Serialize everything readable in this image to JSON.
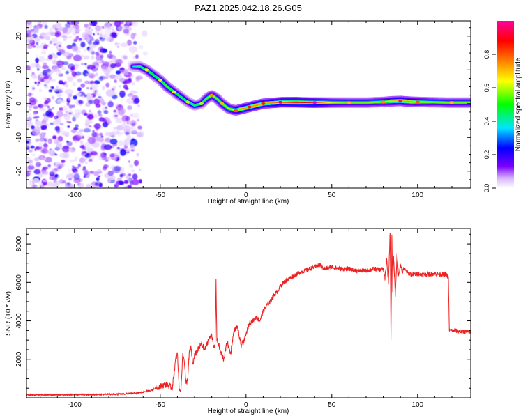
{
  "title": "PAZ1.2025.042.18.26.G05",
  "chart_data": [
    {
      "type": "heatmap",
      "xlabel": "Height of straight line (km)",
      "ylabel": "Frequency (Hz)",
      "xlim": [
        -128,
        131
      ],
      "ylim": [
        -25,
        24.5
      ],
      "x_ticks": [
        -100,
        -50,
        0,
        50,
        100
      ],
      "x_tick_labels": [
        "-100",
        "-50",
        "0",
        "50",
        "100"
      ],
      "y_ticks": [
        -20,
        -10,
        0,
        10,
        20
      ],
      "y_tick_labels": [
        "-20",
        "-10",
        "0",
        "10",
        "20"
      ],
      "noise_region_x": [
        -128,
        -58
      ],
      "ridge": {
        "x": [
          -66,
          -62,
          -58,
          -54,
          -50,
          -46,
          -42,
          -38,
          -34,
          -30,
          -26,
          -23,
          -20,
          -17,
          -14,
          -10,
          -6,
          -2,
          2,
          6,
          10,
          15,
          20,
          30,
          40,
          50,
          60,
          70,
          80,
          85,
          90,
          95,
          100,
          110,
          120,
          131
        ],
        "y": [
          11,
          11,
          10,
          8.5,
          7,
          5,
          3.5,
          2,
          0.5,
          -0.5,
          0,
          1.5,
          2.5,
          1.5,
          0,
          -1.5,
          -2,
          -1.5,
          -1,
          -0.5,
          0,
          0.2,
          0.4,
          0.4,
          0.3,
          0.3,
          0.3,
          0.3,
          0.5,
          0.7,
          0.8,
          0.6,
          0.5,
          0.4,
          0.3,
          0.3
        ],
        "amplitude": [
          0.35,
          0.45,
          0.5,
          0.5,
          0.5,
          0.55,
          0.5,
          0.5,
          0.45,
          0.45,
          0.45,
          0.55,
          0.6,
          0.55,
          0.55,
          0.6,
          0.65,
          0.75,
          0.7,
          0.75,
          0.7,
          0.75,
          0.8,
          0.9,
          0.85,
          0.6,
          0.55,
          0.55,
          0.6,
          0.7,
          0.7,
          0.75,
          0.65,
          0.55,
          0.55,
          0.55
        ]
      },
      "colorbar": {
        "label": "Normalized spectral amplitude",
        "range": [
          0,
          1
        ],
        "ticks": [
          0.0,
          0.2,
          0.4,
          0.6,
          0.8
        ],
        "tick_labels": [
          "0.0",
          "0.2",
          "0.4",
          "0.6",
          "0.8"
        ],
        "colormap": [
          "#ffffff",
          "#7d00ff",
          "#0000ff",
          "#00e5ff",
          "#00ff00",
          "#ffff00",
          "#ff8000",
          "#ff0000",
          "#ff00a0"
        ]
      },
      "grid": false
    },
    {
      "type": "line",
      "xlabel": "Height of straight line (km)",
      "ylabel": "SNR (10 * v/v)",
      "xlim": [
        -128,
        131
      ],
      "ylim": [
        0,
        8800
      ],
      "x_ticks": [
        -100,
        -50,
        0,
        50,
        100
      ],
      "x_tick_labels": [
        "-100",
        "-50",
        "0",
        "50",
        "100"
      ],
      "y_ticks": [
        2000,
        4000,
        6000,
        8000
      ],
      "y_tick_labels": [
        "2000",
        "4000",
        "6000",
        "8000"
      ],
      "color": "#ee2222",
      "grid": false,
      "series": [
        {
          "x": [
            -128,
            -110,
            -90,
            -70,
            -62,
            -55,
            -50,
            -46,
            -43,
            -41,
            -40,
            -39,
            -38,
            -37,
            -36,
            -35,
            -34,
            -33,
            -32,
            -31,
            -30,
            -28,
            -26,
            -24,
            -22,
            -20,
            -19,
            -18,
            -17.5,
            -17,
            -16,
            -15,
            -13,
            -11,
            -9,
            -7,
            -5,
            -3,
            -1,
            0,
            2,
            4,
            6,
            8,
            10,
            12,
            14,
            16,
            18,
            20,
            22,
            25,
            28,
            31,
            34,
            37,
            40,
            43,
            46,
            50,
            55,
            60,
            65,
            70,
            75,
            78,
            80,
            81,
            82,
            83,
            84,
            84.5,
            85,
            85.5,
            86,
            87,
            88,
            89,
            90,
            91,
            92,
            94,
            97,
            100,
            105,
            110,
            115,
            117,
            118,
            118.5,
            120,
            125,
            131
          ],
          "y": [
            150,
            150,
            160,
            200,
            260,
            400,
            600,
            700,
            500,
            2000,
            2300,
            500,
            300,
            2200,
            2000,
            700,
            1000,
            2400,
            2600,
            1700,
            2200,
            2500,
            2800,
            2500,
            3000,
            3300,
            2600,
            2700,
            6100,
            3000,
            2800,
            2400,
            2000,
            2900,
            2300,
            3500,
            3700,
            2700,
            3000,
            3300,
            3900,
            4000,
            4200,
            4000,
            4500,
            4800,
            5000,
            5300,
            5500,
            5800,
            6000,
            6200,
            6350,
            6500,
            6600,
            6700,
            6800,
            6900,
            6700,
            6800,
            6700,
            6700,
            6600,
            6600,
            6700,
            6650,
            6700,
            6200,
            7200,
            6000,
            8700,
            2900,
            8400,
            5600,
            7500,
            5300,
            7400,
            6300,
            7000,
            6500,
            6700,
            6500,
            6400,
            6450,
            6400,
            6450,
            6400,
            6400,
            6200,
            3500,
            3500,
            3450,
            3400
          ]
        }
      ]
    }
  ]
}
